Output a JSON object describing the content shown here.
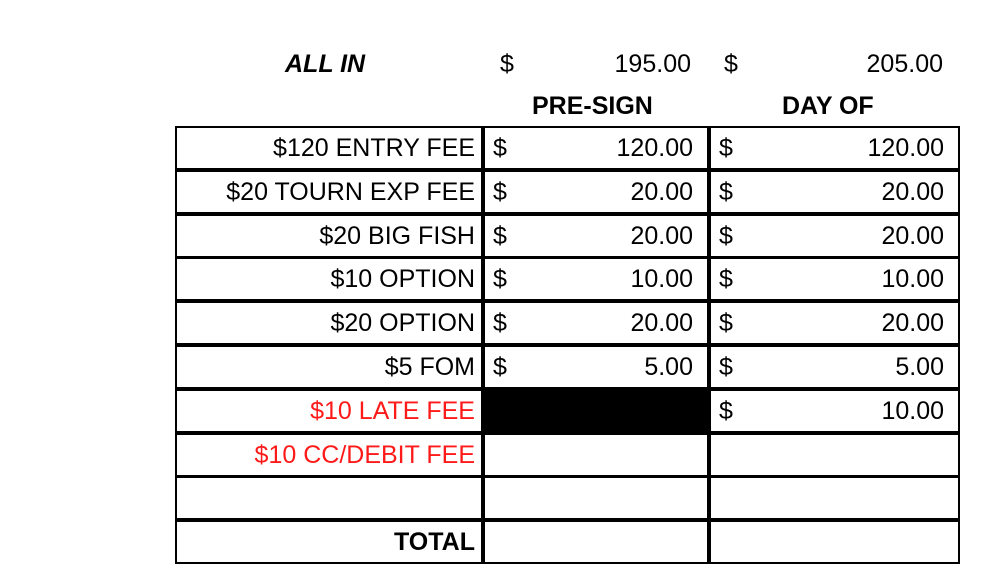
{
  "summary": {
    "label": "ALL IN",
    "presign": {
      "currency": "$",
      "amount": "195.00"
    },
    "dayof": {
      "currency": "$",
      "amount": "205.00"
    }
  },
  "columns": {
    "presign": "PRE-SIGN",
    "dayof": "DAY OF"
  },
  "colors": {
    "fee_highlight": "#ff1a1a",
    "blocked_cell": "#000000"
  },
  "rows": [
    {
      "label": "$120 ENTRY FEE",
      "presign": "120.00",
      "dayof": "120.00",
      "red": false,
      "bold": false
    },
    {
      "label": "$20 TOURN EXP FEE",
      "presign": "20.00",
      "dayof": "20.00",
      "red": false,
      "bold": false
    },
    {
      "label": "$20 BIG FISH",
      "presign": "20.00",
      "dayof": "20.00",
      "red": false,
      "bold": false
    },
    {
      "label": "$10 OPTION",
      "presign": "10.00",
      "dayof": "10.00",
      "red": false,
      "bold": false
    },
    {
      "label": "$20 OPTION",
      "presign": "20.00",
      "dayof": "20.00",
      "red": false,
      "bold": false
    },
    {
      "label": "$5 FOM",
      "presign": "5.00",
      "dayof": "5.00",
      "red": false,
      "bold": false
    },
    {
      "label": "$10 LATE FEE",
      "presign": null,
      "presign_blocked": true,
      "dayof": "10.00",
      "red": true,
      "bold": false
    },
    {
      "label": "$10 CC/DEBIT FEE",
      "presign": null,
      "dayof": null,
      "red": true,
      "bold": false
    },
    {
      "label": "",
      "presign": null,
      "dayof": null,
      "red": false,
      "bold": false
    },
    {
      "label": "TOTAL",
      "presign": null,
      "dayof": null,
      "red": false,
      "bold": true
    }
  ],
  "currency": "$"
}
